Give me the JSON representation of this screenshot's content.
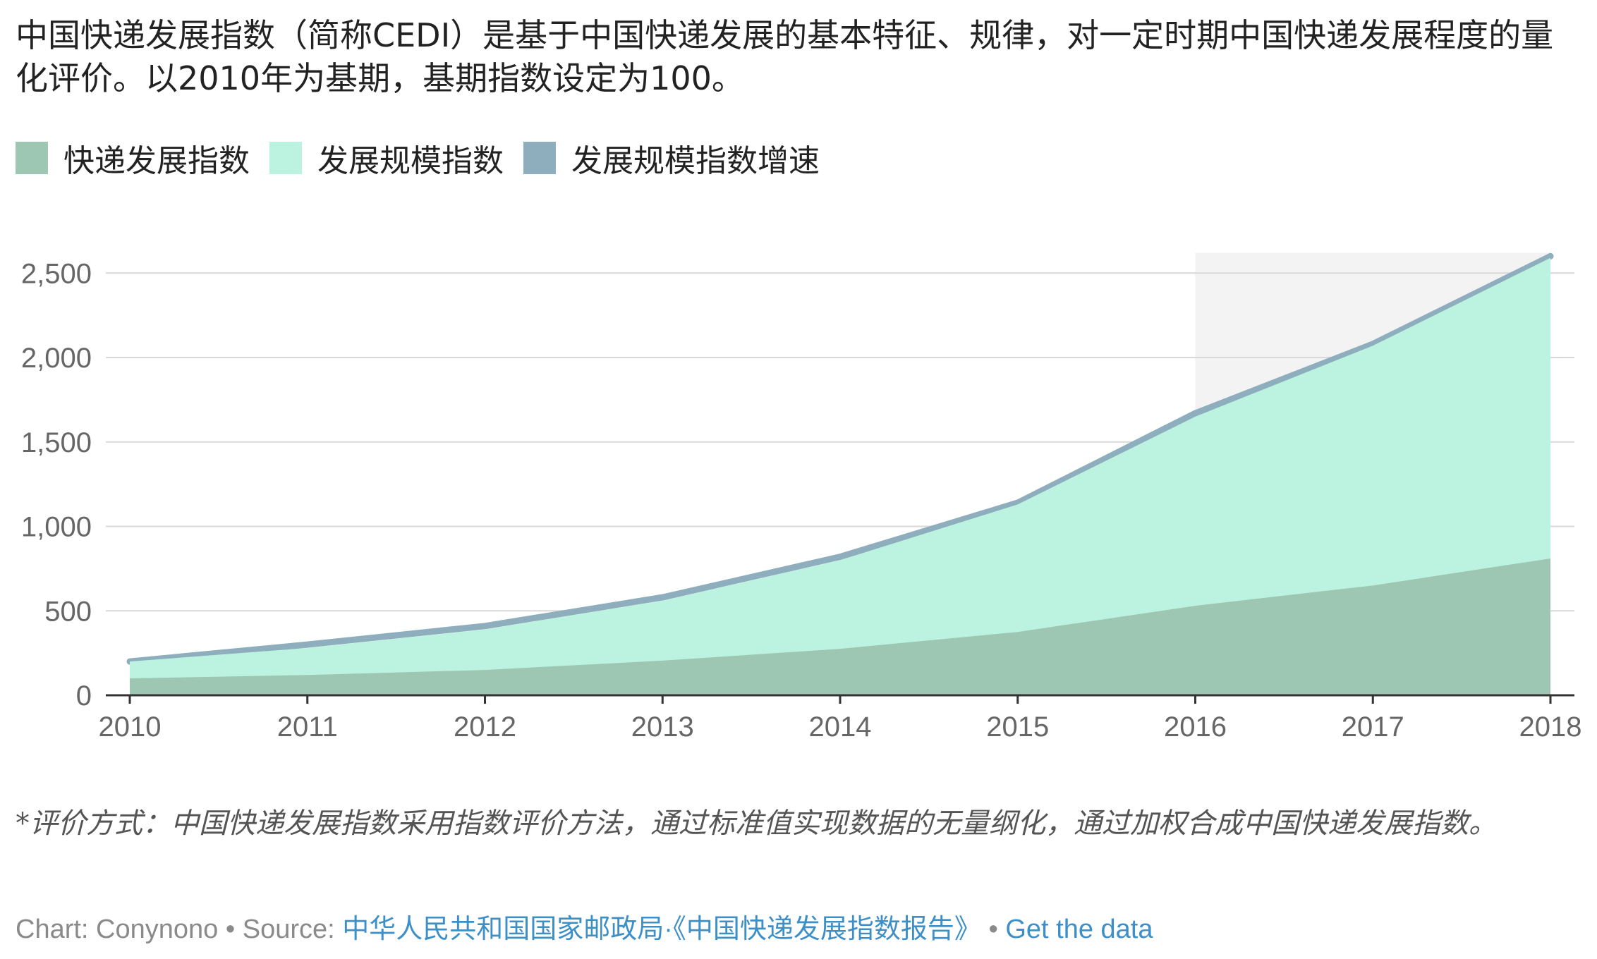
{
  "intro": "中国快递发展指数（简称CEDI）是基于中国快递发展的基本特征、规律，对一定时期中国快递发展程度的量化评价。以2010年为基期，基期指数设定为100。",
  "legend": [
    {
      "label": "快递发展指数",
      "color": "#9dc6b3"
    },
    {
      "label": "发展规模指数",
      "color": "#bcf2e0"
    },
    {
      "label": "发展规模指数增速",
      "color": "#8faebd"
    }
  ],
  "chart_data": {
    "type": "area",
    "categories": [
      "2010",
      "2011",
      "2012",
      "2013",
      "2014",
      "2015",
      "2016",
      "2017",
      "2018"
    ],
    "series": [
      {
        "name": "快递发展指数",
        "color": "#9dc6b3",
        "values": [
          100,
          120,
          150,
          205,
          275,
          375,
          530,
          650,
          810
        ]
      },
      {
        "name": "发展规模指数",
        "color": "#bcf2e0",
        "values": [
          200,
          280,
          390,
          560,
          800,
          1130,
          1650,
          2070,
          2590
        ]
      },
      {
        "name": "发展规模指数增速",
        "color": "#8faebd",
        "values": [
          200,
          300,
          410,
          580,
          820,
          1140,
          1670,
          2080,
          2600
        ]
      }
    ],
    "ylim": [
      0,
      2700
    ],
    "yticks": [
      0,
      500,
      1000,
      1500,
      2000,
      2500
    ],
    "ytick_labels": [
      "0",
      "500",
      "1,000",
      "1,500",
      "2,000",
      "2,500"
    ],
    "grid": true,
    "highlight_range": [
      "2016",
      "2018"
    ],
    "xlabel": "",
    "ylabel": ""
  },
  "notes": "*评价方式：中国快递发展指数采用指数评价方法，通过标准值实现数据的无量纲化，通过加权合成中国快递发展指数。",
  "footer": {
    "chart_label": "Chart: Conynono",
    "sep1": " • ",
    "source_label": "Source: ",
    "source_link": "中华人民共和国国家邮政局·《中国快递发展指数报告》",
    "sep2": " • ",
    "data_link": "Get the data"
  },
  "colors": {
    "axis": "#333333",
    "grid": "#d9d9d9",
    "tick_text": "#666666",
    "highlight": "#f3f3f3",
    "link": "#3d8fc7"
  }
}
